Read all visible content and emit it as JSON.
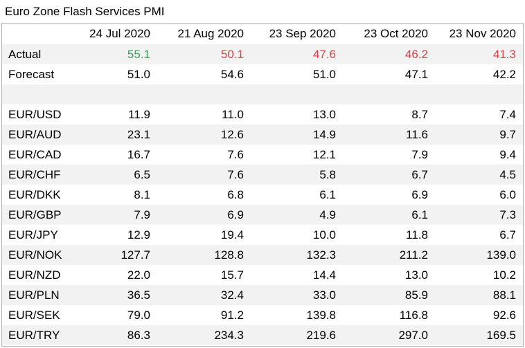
{
  "title": "Euro Zone Flash Services PMI",
  "header": [
    "",
    "24 Jul 2020",
    "21 Aug 2020",
    "23 Sep 2020",
    "23 Oct 2020",
    "23 Nov 2020"
  ],
  "actual": {
    "label": "Actual",
    "values": [
      "55.1",
      "50.1",
      "47.6",
      "46.2",
      "41.3"
    ],
    "colors": [
      "green",
      "red",
      "red",
      "red",
      "red"
    ]
  },
  "forecast": {
    "label": "Forecast",
    "values": [
      "51.0",
      "54.6",
      "51.0",
      "47.1",
      "42.2"
    ]
  },
  "pairs": [
    {
      "label": "EUR/USD",
      "values": [
        "11.9",
        "11.0",
        "13.0",
        "8.7",
        "7.4"
      ]
    },
    {
      "label": "EUR/AUD",
      "values": [
        "23.1",
        "12.6",
        "14.9",
        "11.6",
        "9.7"
      ]
    },
    {
      "label": "EUR/CAD",
      "values": [
        "16.7",
        "7.6",
        "12.1",
        "7.9",
        "9.4"
      ]
    },
    {
      "label": "EUR/CHF",
      "values": [
        "6.5",
        "7.6",
        "5.8",
        "6.7",
        "4.5"
      ]
    },
    {
      "label": "EUR/DKK",
      "values": [
        "8.1",
        "6.8",
        "6.1",
        "6.9",
        "6.0"
      ]
    },
    {
      "label": "EUR/GBP",
      "values": [
        "7.9",
        "6.9",
        "4.9",
        "6.1",
        "7.3"
      ]
    },
    {
      "label": "EUR/JPY",
      "values": [
        "12.9",
        "19.4",
        "10.0",
        "11.8",
        "6.7"
      ]
    },
    {
      "label": "EUR/NOK",
      "values": [
        "127.7",
        "128.8",
        "132.3",
        "211.2",
        "139.0"
      ]
    },
    {
      "label": "EUR/NZD",
      "values": [
        "22.0",
        "15.7",
        "14.4",
        "13.0",
        "10.2"
      ]
    },
    {
      "label": "EUR/PLN",
      "values": [
        "36.5",
        "32.4",
        "33.0",
        "85.9",
        "88.1"
      ]
    },
    {
      "label": "EUR/SEK",
      "values": [
        "79.0",
        "91.2",
        "139.8",
        "116.8",
        "92.6"
      ]
    },
    {
      "label": "EUR/TRY",
      "values": [
        "86.3",
        "234.3",
        "219.6",
        "297.0",
        "169.5"
      ]
    }
  ],
  "colors": {
    "green": "#3aa05a",
    "red": "#d9434b",
    "shade": "#f2f2f2",
    "border": "#b0b0b0"
  }
}
